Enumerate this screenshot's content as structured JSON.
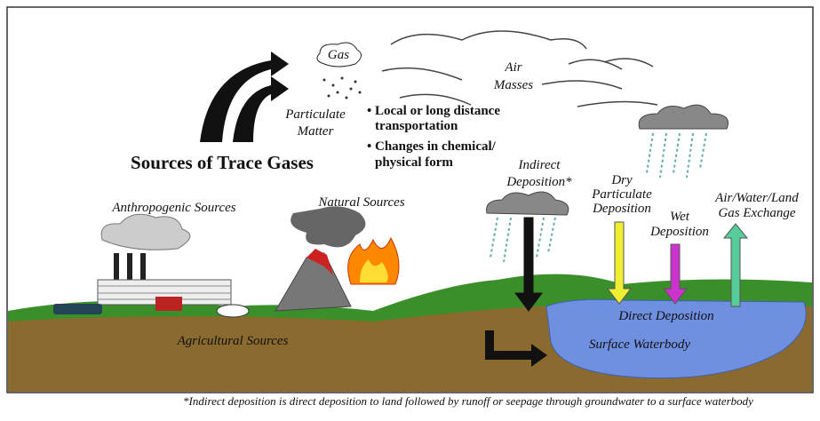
{
  "title": "Sources of Trace Gases",
  "labels": {
    "gas": "Gas",
    "particulate_matter": [
      "Particulate",
      "Matter"
    ],
    "air_masses": [
      "Air",
      "Masses"
    ],
    "indirect_deposition": [
      "Indirect",
      "Deposition*"
    ],
    "dry_deposition": [
      "Dry",
      "Particulate",
      "Deposition"
    ],
    "wet_deposition": [
      "Wet",
      "Deposition"
    ],
    "gas_exchange": [
      "Air/Water/Land",
      "Gas Exchange"
    ],
    "anthropogenic": "Anthropogenic Sources",
    "natural": "Natural Sources",
    "agricultural": "Agricultural Sources",
    "direct_deposition": "Direct Deposition",
    "surface_waterbody": "Surface Waterbody"
  },
  "bullets": [
    [
      "• Local or long distance",
      "transportation"
    ],
    [
      "• Changes in chemical/",
      "physical form"
    ]
  ],
  "footnote": "*Indirect deposition is direct deposition to land followed by runoff or seepage through groundwater to a surface waterbody"
}
